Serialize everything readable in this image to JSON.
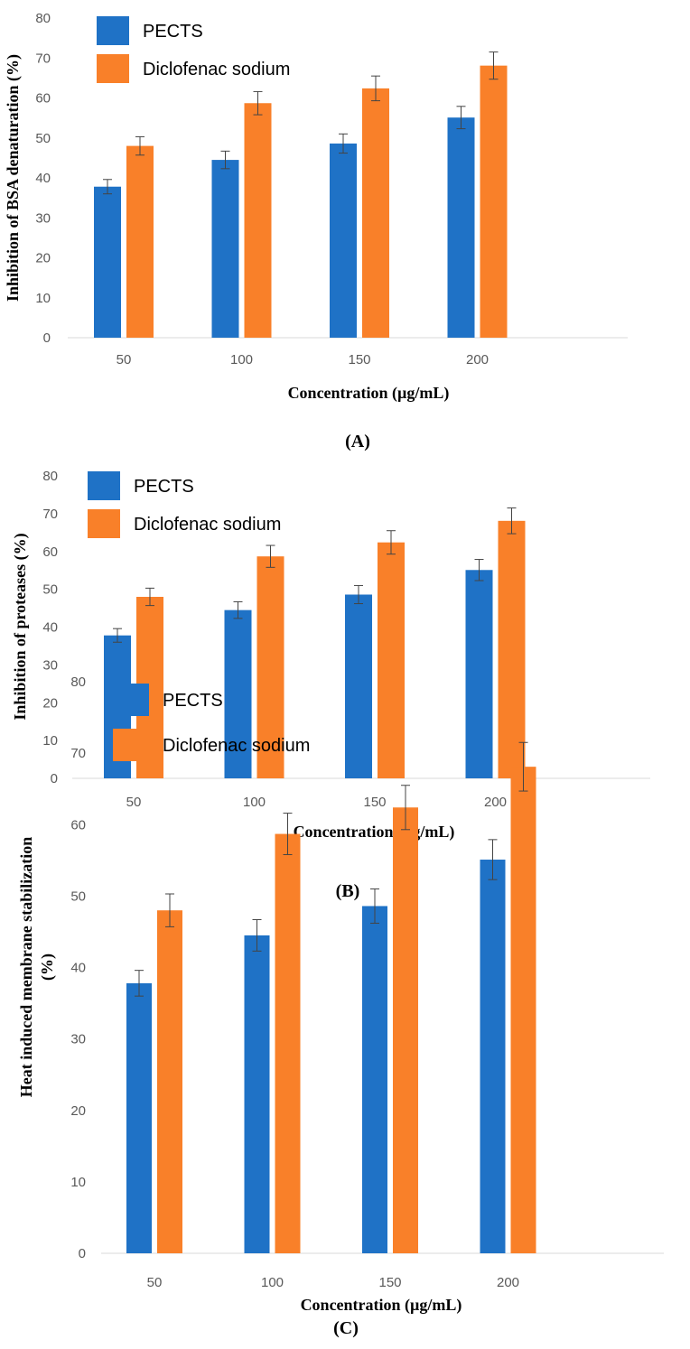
{
  "colors": {
    "pects": "#1f72c6",
    "diclofenac": "#f98029",
    "axis": "#d9d9d9",
    "error": "#444444"
  },
  "chart_data": [
    {
      "type": "bar",
      "panel_label": "(A)",
      "title": "",
      "xlabel": "Concentration (µg/mL)",
      "ylabel": "Inhibition of BSA denaturation (%)",
      "categories": [
        "50",
        "100",
        "150",
        "200"
      ],
      "ylim": [
        0,
        80
      ],
      "yticks": [
        0,
        10,
        20,
        30,
        40,
        50,
        60,
        70,
        80
      ],
      "legend_position": "top-left",
      "series": [
        {
          "name": "PECTS",
          "values": [
            37.8,
            44.5,
            48.6,
            55.1
          ],
          "errors": [
            1.8,
            2.2,
            2.4,
            2.8
          ]
        },
        {
          "name": "Diclofenac sodium",
          "values": [
            48.0,
            58.7,
            62.4,
            68.1
          ],
          "errors": [
            2.3,
            2.9,
            3.1,
            3.4
          ]
        }
      ]
    },
    {
      "type": "bar",
      "panel_label": "(B)",
      "title": "",
      "xlabel": "Concentration (µg/mL)",
      "ylabel": "Inhibition of proteases (%)",
      "categories": [
        "50",
        "100",
        "150",
        "200"
      ],
      "ylim": [
        0,
        80
      ],
      "yticks": [
        0,
        10,
        20,
        30,
        40,
        50,
        60,
        70,
        80
      ],
      "legend_position": "top-left",
      "series": [
        {
          "name": "PECTS",
          "values": [
            37.8,
            44.5,
            48.6,
            55.1
          ],
          "errors": [
            1.8,
            2.2,
            2.4,
            2.8
          ]
        },
        {
          "name": "Diclofenac sodium",
          "values": [
            48.0,
            58.7,
            62.4,
            68.1
          ],
          "errors": [
            2.3,
            2.9,
            3.1,
            3.4
          ]
        }
      ]
    },
    {
      "type": "bar",
      "panel_label": "(C)",
      "title": "",
      "xlabel": "Concentration (µg/mL)",
      "ylabel_lines": [
        "Heat induced membrane stabilization",
        "(%)"
      ],
      "categories": [
        "50",
        "100",
        "150",
        "200"
      ],
      "ylim": [
        0,
        80
      ],
      "yticks": [
        0,
        10,
        20,
        30,
        40,
        50,
        60,
        70,
        80
      ],
      "legend_position": "top-left",
      "series": [
        {
          "name": "PECTS",
          "values": [
            37.8,
            44.5,
            48.6,
            55.1
          ],
          "errors": [
            1.8,
            2.2,
            2.4,
            2.8
          ]
        },
        {
          "name": "Diclofenac sodium",
          "values": [
            48.0,
            58.7,
            62.4,
            68.1
          ],
          "errors": [
            2.3,
            2.9,
            3.1,
            3.4
          ]
        }
      ]
    }
  ]
}
